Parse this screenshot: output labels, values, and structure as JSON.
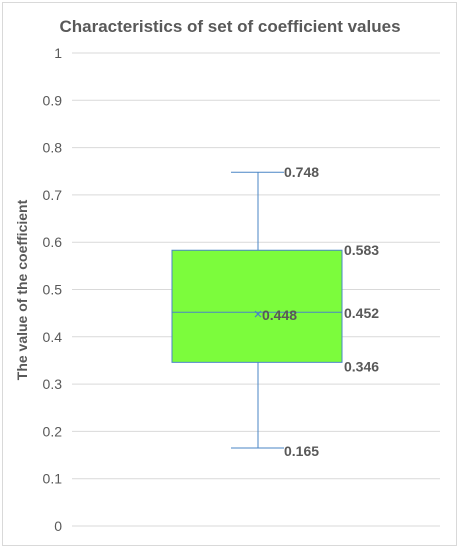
{
  "chart_data": {
    "type": "box",
    "title": "Characteristics of set of coefficient values",
    "xlabel": "",
    "ylabel": "The value of the coefficient",
    "ylim": [
      0,
      1
    ],
    "yticks": [
      "0",
      "0.1",
      "0.2",
      "0.3",
      "0.4",
      "0.5",
      "0.6",
      "0.7",
      "0.8",
      "0.9",
      "1"
    ],
    "grid": true,
    "box": {
      "min": 0.165,
      "q1": 0.346,
      "median": 0.452,
      "mean": 0.448,
      "q3": 0.583,
      "max": 0.748,
      "fill_color": "#7CFC3C",
      "line_color": "#4a86c5"
    },
    "labels": {
      "max": "0.748",
      "q3": "0.583",
      "median": "0.452",
      "mean": "0.448",
      "q1": "0.346",
      "min": "0.165"
    }
  }
}
